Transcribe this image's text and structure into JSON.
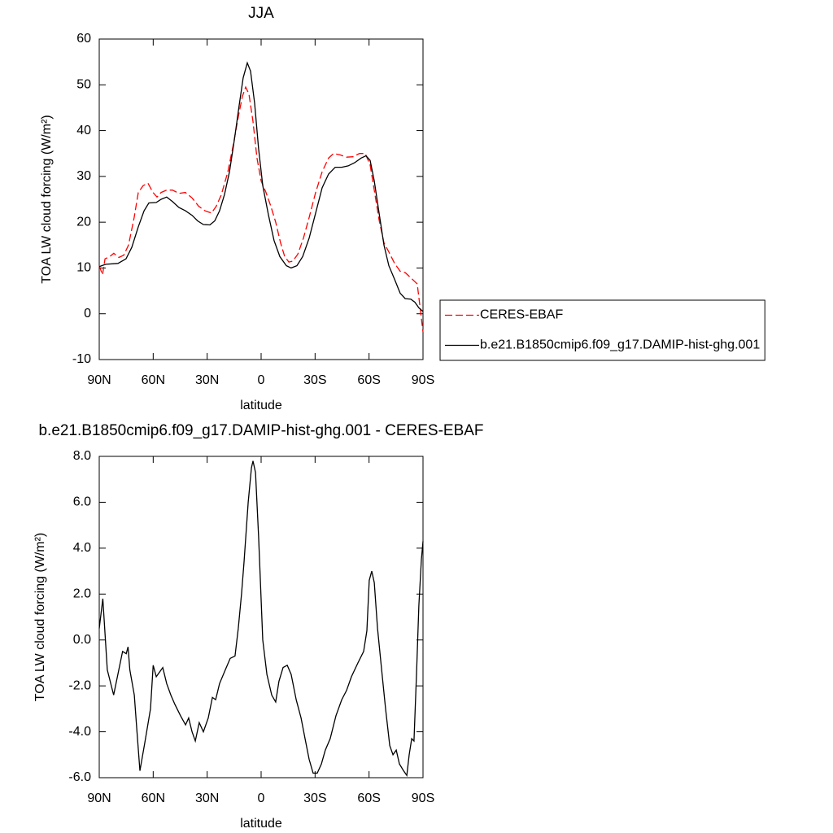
{
  "chart_data": [
    {
      "type": "line",
      "title": "JJA",
      "xlabel": "latitude",
      "ylabel": "TOA LW cloud forcing (W/m²)",
      "xlim": [
        90,
        -90
      ],
      "xticks": [
        {
          "value": 90,
          "label": "90N"
        },
        {
          "value": 60,
          "label": "60N"
        },
        {
          "value": 30,
          "label": "30N"
        },
        0,
        {
          "value": -30,
          "label": "30S"
        },
        {
          "value": -60,
          "label": "60S"
        },
        {
          "value": -90,
          "label": "90S"
        }
      ],
      "ylim": [
        -10,
        60
      ],
      "yticks": [
        -10,
        0,
        10,
        20,
        30,
        40,
        50,
        60
      ],
      "legend": "right",
      "series": [
        {
          "name": "CERES-EBAF",
          "color": "#ff0000",
          "dash": true,
          "x": [
            90,
            88.2,
            86.8,
            84.1,
            81.9,
            79.1,
            76.4,
            73.7,
            70.6,
            68.3,
            65.6,
            62.9,
            60.1,
            57.9,
            55.6,
            52.5,
            49.3,
            45.7,
            42.1,
            38.4,
            34.8,
            31.2,
            27.6,
            24.9,
            22.1,
            18.5,
            15.4,
            12.7,
            10.4,
            8.6,
            6.8,
            4.5,
            2.3,
            0,
            -2.7,
            -5.4,
            -8.1,
            -10.8,
            -13.1,
            -15.4,
            -17.6,
            -20.4,
            -23.5,
            -26.7,
            -30.3,
            -33.9,
            -37.5,
            -40.3,
            -43.9,
            -47.5,
            -51.1,
            -54.7,
            -57.9,
            -60.6,
            -62.9,
            -65.6,
            -68.3,
            -71,
            -74.2,
            -77.3,
            -80.1,
            -82.8,
            -85.5,
            -86.8,
            -88.2,
            -90
          ],
          "values": [
            10.5,
            8.5,
            12,
            12.5,
            13.2,
            12.3,
            12.8,
            15,
            21,
            26.5,
            28,
            28.5,
            26.5,
            25.5,
            26.5,
            27,
            27,
            26.3,
            26.5,
            25.3,
            23.5,
            22.5,
            22,
            23.5,
            26,
            31,
            37,
            43,
            47.5,
            49.5,
            48,
            42,
            34,
            29,
            26.5,
            23.5,
            20,
            15.5,
            12.5,
            11.3,
            11.5,
            13,
            16.5,
            21,
            26.5,
            31,
            34,
            35,
            34.7,
            34.2,
            34.3,
            35,
            35,
            32.5,
            27,
            20.5,
            15.5,
            13.5,
            11,
            9.3,
            9,
            8,
            7,
            6.5,
            2,
            -4
          ]
        },
        {
          "name": "b.e21.B1850cmip6.f09_g17.DAMIP-hist-ghg.001",
          "color": "#000000",
          "dash": false,
          "x": [
            90,
            86.4,
            79.6,
            75.1,
            71.9,
            68.3,
            65.1,
            62.4,
            58.3,
            55.6,
            52.5,
            49.3,
            45.7,
            42.1,
            38.4,
            35.3,
            32.1,
            28.5,
            25.8,
            23.1,
            20.4,
            17.6,
            14.9,
            12.2,
            10,
            7.7,
            5.9,
            3.6,
            1.4,
            -0.9,
            -4.1,
            -7.2,
            -10.4,
            -14,
            -16.7,
            -19.9,
            -23.1,
            -26.7,
            -30.3,
            -33.9,
            -37.5,
            -41.2,
            -44.8,
            -48.4,
            -52,
            -55.6,
            -58.3,
            -60.6,
            -62.9,
            -65.6,
            -68.3,
            -71,
            -74.2,
            -77.3,
            -80.1,
            -83.2,
            -85.5,
            -87.7,
            -90
          ],
          "values": [
            10.3,
            10.8,
            11,
            12,
            14.5,
            19,
            22.5,
            24.2,
            24.3,
            25,
            25.5,
            24.5,
            23.2,
            22.5,
            21.5,
            20.3,
            19.5,
            19.4,
            20.3,
            22.5,
            26,
            31,
            38,
            45.5,
            51.5,
            54.8,
            53,
            46,
            36,
            28,
            21.5,
            16,
            12.5,
            10.5,
            10,
            10.5,
            12.5,
            16.5,
            22,
            27.5,
            30.5,
            32,
            32,
            32.3,
            33,
            34,
            34.5,
            33.5,
            29,
            22,
            15,
            10.5,
            7.5,
            4.5,
            3.3,
            3.2,
            2.5,
            1.3,
            0.5
          ]
        }
      ]
    },
    {
      "type": "line",
      "title": "b.e21.B1850cmip6.f09_g17.DAMIP-hist-ghg.001 - CERES-EBAF",
      "xlabel": "latitude",
      "ylabel": "TOA LW cloud forcing (W/m²)",
      "xlim": [
        90,
        -90
      ],
      "xticks": [
        {
          "value": 90,
          "label": "90N"
        },
        {
          "value": 60,
          "label": "60N"
        },
        {
          "value": 30,
          "label": "30N"
        },
        0,
        {
          "value": -30,
          "label": "30S"
        },
        {
          "value": -60,
          "label": "60S"
        },
        {
          "value": -90,
          "label": "90S"
        }
      ],
      "ylim": [
        -6,
        8
      ],
      "yticks": [
        {
          "value": -6,
          "label": "-6.0"
        },
        {
          "value": -4,
          "label": "-4.0"
        },
        {
          "value": -2,
          "label": "-2.0"
        },
        {
          "value": 0,
          "label": "0.0"
        },
        {
          "value": 2,
          "label": "2.0"
        },
        {
          "value": 4,
          "label": "4.0"
        },
        {
          "value": 6,
          "label": "6.0"
        },
        {
          "value": 8,
          "label": "8.0"
        }
      ],
      "color": "#000000",
      "x": [
        90,
        88,
        85.5,
        82,
        77,
        75,
        74,
        73,
        70.5,
        69,
        67.4,
        64.7,
        61.5,
        60,
        58.3,
        56.5,
        54.7,
        52.5,
        50.2,
        48,
        44.8,
        42,
        40.3,
        38.4,
        36.6,
        34.4,
        32.1,
        29.4,
        27.1,
        25.3,
        23.1,
        19.9,
        17.2,
        14.5,
        12.7,
        10.9,
        9.5,
        7.2,
        5.4,
        4.5,
        3.1,
        1.4,
        -0.9,
        -3.2,
        -5.9,
        -8.1,
        -9.9,
        -12.2,
        -14.5,
        -16.7,
        -19.5,
        -22.2,
        -24.4,
        -26.7,
        -28.9,
        -31.2,
        -33.5,
        -35.7,
        -38.4,
        -41.6,
        -44.8,
        -47.5,
        -50.2,
        -53.8,
        -57,
        -58.8,
        -60.1,
        -61.5,
        -62.9,
        -64.7,
        -67.4,
        -69.2,
        -71.5,
        -73.3,
        -75.1,
        -76.9,
        -79.2,
        -81,
        -82.3,
        -83.7,
        -85,
        -86.4,
        -87.7,
        -89.1,
        -90
      ],
      "values": [
        0.5,
        1.8,
        -1.3,
        -2.4,
        -0.5,
        -0.6,
        -0.3,
        -1.3,
        -2.4,
        -4,
        -5.7,
        -4.5,
        -3,
        -1.1,
        -1.6,
        -1.4,
        -1.2,
        -1.9,
        -2.4,
        -2.8,
        -3.3,
        -3.7,
        -3.4,
        -4,
        -4.4,
        -3.6,
        -4,
        -3.4,
        -2.5,
        -2.6,
        -1.9,
        -1.3,
        -0.8,
        -0.7,
        0.5,
        2,
        3.4,
        6,
        7.5,
        7.8,
        7.3,
        4.5,
        0,
        -1.5,
        -2.4,
        -2.7,
        -1.8,
        -1.2,
        -1.1,
        -1.5,
        -2.6,
        -3.4,
        -4.3,
        -5.2,
        -5.8,
        -5.8,
        -5.4,
        -4.8,
        -4.3,
        -3.3,
        -2.6,
        -2.2,
        -1.6,
        -1,
        -0.5,
        0.4,
        2.6,
        3,
        2.5,
        0.5,
        -1.6,
        -3,
        -4.6,
        -5,
        -4.8,
        -5.4,
        -5.7,
        -5.9,
        -5,
        -4.3,
        -4.4,
        -1.5,
        1.5,
        3.5,
        4.3
      ]
    }
  ]
}
